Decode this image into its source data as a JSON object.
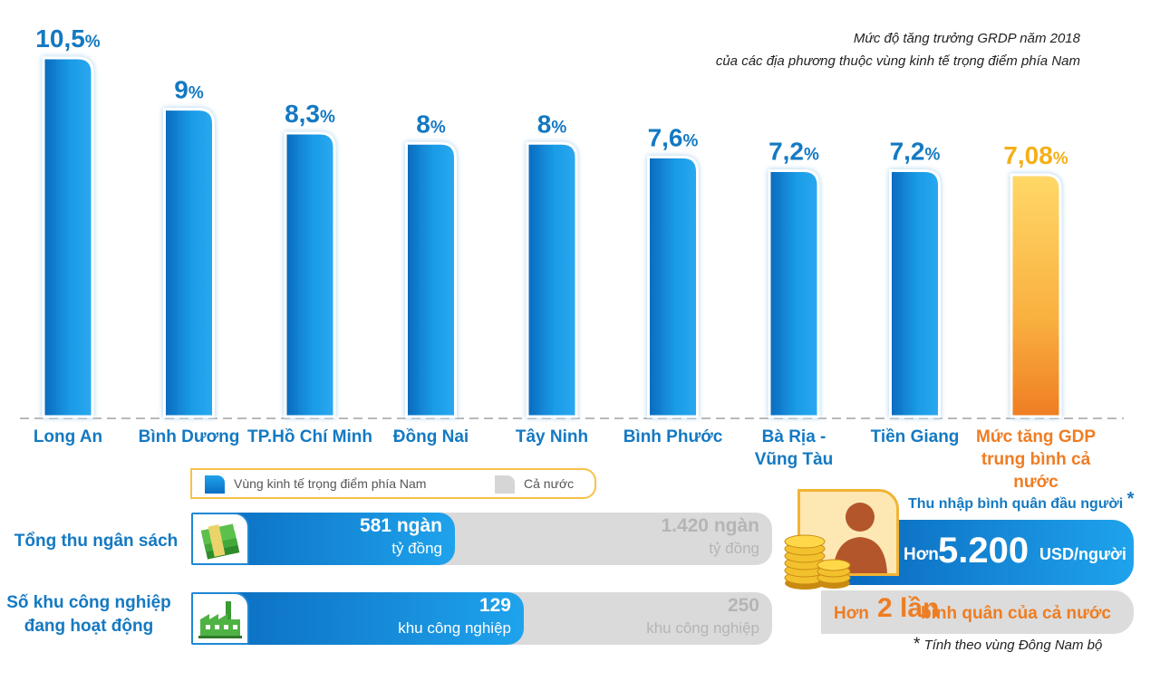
{
  "chart_data": {
    "type": "bar",
    "title_lines": [
      "Mức độ tăng trưởng GRDP năm 2018",
      "của các địa phương thuộc vùng kinh tế trọng điểm phía Nam"
    ],
    "categories": [
      [
        "Long An"
      ],
      [
        "Bình Dương"
      ],
      [
        "TP.Hồ Chí Minh"
      ],
      [
        "Đồng Nai"
      ],
      [
        "Tây Ninh"
      ],
      [
        "Bình Phước"
      ],
      [
        "Bà Rịa -",
        "Vũng Tàu"
      ],
      [
        "Tiền Giang"
      ],
      [
        "Mức tăng GDP",
        "trung bình cả nước"
      ]
    ],
    "values": [
      10.5,
      9,
      8.3,
      8,
      8,
      7.6,
      7.2,
      7.2,
      7.08
    ],
    "value_labels": [
      "10,5",
      "9",
      "8,3",
      "8",
      "8",
      "7,6",
      "7,2",
      "7,2",
      "7,08"
    ],
    "unit": "%",
    "highlight_index": 8,
    "ylim": [
      0,
      10.5
    ],
    "colors": {
      "region": "#1a9be6",
      "region_dark": "#0a69bd",
      "national_top": "#ffd560",
      "national_bottom": "#ef7d23"
    }
  },
  "legend": {
    "region": "Vùng kinh tế trọng điểm phía Nam",
    "national": "Cả nước"
  },
  "stats": [
    {
      "label_lines": [
        "Tổng thu ngân sách"
      ],
      "icon": "money-stack-icon",
      "region": 581,
      "national": 1420,
      "region_value": "581 ngàn",
      "region_unit": "tỷ đồng",
      "national_value": "1.420 ngàn",
      "national_unit": "tỷ đồng"
    },
    {
      "label_lines": [
        "Số khu công nghiệp",
        "đang hoạt động"
      ],
      "icon": "factory-icon",
      "region": 129,
      "national": 250,
      "region_value": "129",
      "region_unit": "khu công nghiệp",
      "national_value": "250",
      "national_unit": "khu công nghiệp"
    }
  ],
  "income": {
    "heading": "Thu nhập bình quân đầu người",
    "asterisk": "*",
    "prefix": "Hơn",
    "value": "5.200",
    "unit": "USD/người",
    "compare_prefix": "Hơn",
    "compare_value": "2 lần",
    "compare_suffix": "bình quân của cả nước",
    "footnote_mark": "*",
    "footnote": "Tính theo vùng Đông Nam bộ"
  }
}
